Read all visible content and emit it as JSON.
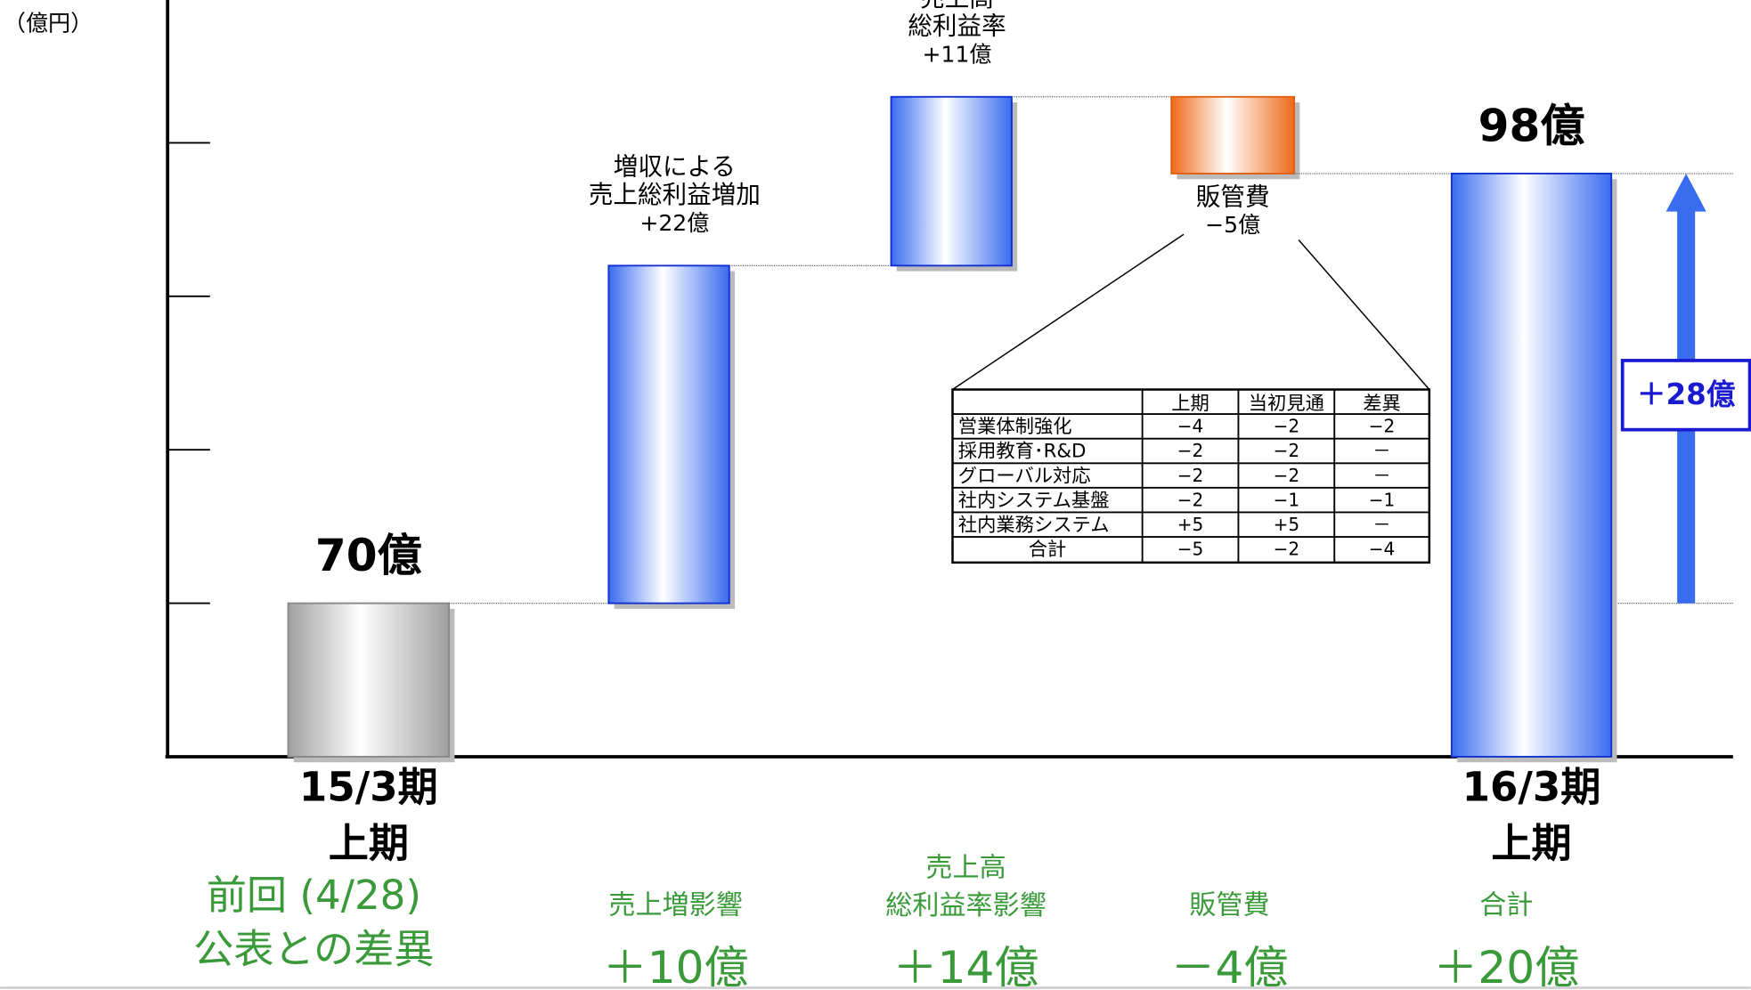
{
  "chart_data": {
    "type": "waterfall",
    "y_label": "（億円）",
    "categories": [
      "15/3期\n上期",
      "増収による\n売上総利益増加",
      "売上高\n総利益率",
      "販管費",
      "16/3期\n上期"
    ],
    "values": [
      70,
      22,
      11,
      -5,
      98
    ],
    "value_labels": [
      "70億",
      "+22億",
      "+11億",
      "−5億",
      "98億"
    ],
    "kinds": [
      "total",
      "step",
      "step",
      "step",
      "total"
    ],
    "colors": [
      "#a0a0a0",
      "#3a6cf0",
      "#3a6cf0",
      "#f06a1a",
      "#3a6cf0"
    ],
    "ylim": [
      60,
      109.3
    ],
    "yticks": [
      70,
      80,
      90,
      100
    ],
    "total_change": {
      "value": 28,
      "label": "＋28億"
    },
    "breakdown_table": {
      "columns": [
        "上期",
        "当初見通",
        "差異"
      ],
      "rows": [
        {
          "label": "営業体制強化",
          "cells": [
            "−4",
            "−2",
            "−2"
          ]
        },
        {
          "label": "採用教育･R&D",
          "cells": [
            "−2",
            "−2",
            "－"
          ]
        },
        {
          "label": "グローバル対応",
          "cells": [
            "−2",
            "−2",
            "－"
          ]
        },
        {
          "label": "社内システム基盤",
          "cells": [
            "−2",
            "−1",
            "−1"
          ]
        },
        {
          "label": "社内業務システム",
          "cells": [
            "+5",
            "+5",
            "－"
          ]
        },
        {
          "label": "合計",
          "cells": [
            "−5",
            "−2",
            "−4"
          ]
        }
      ]
    },
    "comparison": {
      "title": "前回 (4/28)\n公表との差異",
      "items": [
        {
          "label": "売上増影響",
          "value": "＋10億"
        },
        {
          "label": "売上高\n総利益率影響",
          "value": "＋14億"
        },
        {
          "label": "販管費",
          "value": "－4億"
        },
        {
          "label": "合計",
          "value": "＋20億"
        }
      ]
    }
  }
}
